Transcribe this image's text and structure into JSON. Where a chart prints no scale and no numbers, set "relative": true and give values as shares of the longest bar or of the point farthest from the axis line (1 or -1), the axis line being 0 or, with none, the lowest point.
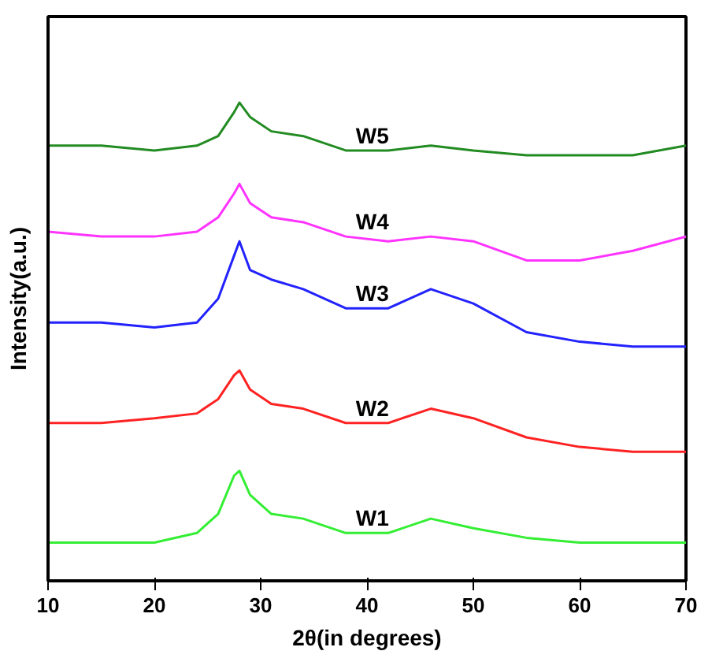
{
  "chart_data": {
    "type": "line",
    "relative": true,
    "xlabel": "2θ(in degrees)",
    "ylabel": "Intensity(a.u.)",
    "x": [
      10,
      15,
      20,
      24,
      26,
      27.5,
      28,
      29,
      31,
      34,
      38,
      42,
      46,
      50,
      55,
      60,
      65,
      70
    ],
    "xlim": [
      10,
      70
    ],
    "xticks": [
      10,
      20,
      30,
      40,
      50,
      60,
      70
    ],
    "grid": false,
    "legend": false,
    "marker": "none",
    "line_style": "solid",
    "series": [
      {
        "name": "W1",
        "color": "#33ee33",
        "values": [
          0.08,
          0.08,
          0.08,
          0.1,
          0.14,
          0.22,
          0.23,
          0.18,
          0.14,
          0.13,
          0.1,
          0.1,
          0.13,
          0.11,
          0.09,
          0.08,
          0.08,
          0.08
        ]
      },
      {
        "name": "W2",
        "color": "#ff2222",
        "values": [
          0.33,
          0.33,
          0.34,
          0.35,
          0.38,
          0.43,
          0.44,
          0.4,
          0.37,
          0.36,
          0.33,
          0.33,
          0.36,
          0.34,
          0.3,
          0.28,
          0.27,
          0.27
        ]
      },
      {
        "name": "W3",
        "color": "#2222ff",
        "values": [
          0.54,
          0.54,
          0.53,
          0.54,
          0.59,
          0.68,
          0.71,
          0.65,
          0.63,
          0.61,
          0.57,
          0.57,
          0.61,
          0.58,
          0.52,
          0.5,
          0.49,
          0.49
        ]
      },
      {
        "name": "W4",
        "color": "#ff33ff",
        "values": [
          0.73,
          0.72,
          0.72,
          0.73,
          0.76,
          0.81,
          0.83,
          0.79,
          0.76,
          0.75,
          0.72,
          0.71,
          0.72,
          0.71,
          0.67,
          0.67,
          0.69,
          0.72
        ]
      },
      {
        "name": "W5",
        "color": "#228b22",
        "values": [
          0.91,
          0.91,
          0.9,
          0.91,
          0.93,
          0.98,
          1,
          0.97,
          0.94,
          0.93,
          0.9,
          0.9,
          0.91,
          0.9,
          0.89,
          0.89,
          0.89,
          0.91
        ]
      }
    ]
  }
}
